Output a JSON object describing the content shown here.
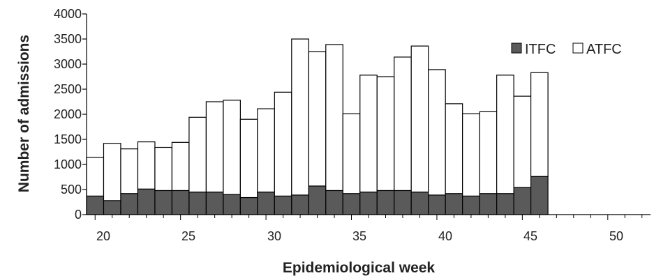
{
  "chart_data": {
    "type": "bar",
    "stacked": true,
    "title": "",
    "xlabel": "Epidemiological week",
    "ylabel": "Number of admissions",
    "xlim": [
      19.5,
      52.5
    ],
    "ylim": [
      0,
      4000
    ],
    "x_ticks": [
      "20",
      "25",
      "30",
      "35",
      "40",
      "45",
      "50"
    ],
    "y_ticks": [
      "0",
      "500",
      "1000",
      "1500",
      "2000",
      "2500",
      "3000",
      "3500",
      "4000"
    ],
    "grid": false,
    "legend_position": "top-right",
    "categories": [
      20,
      21,
      22,
      23,
      24,
      25,
      26,
      27,
      28,
      29,
      30,
      31,
      32,
      33,
      34,
      35,
      36,
      37,
      38,
      39,
      40,
      41,
      42,
      43,
      44,
      45,
      46
    ],
    "series": [
      {
        "name": "ITFC",
        "color": "#5a5a5a",
        "values": [
          370,
          280,
          420,
          510,
          480,
          480,
          450,
          450,
          400,
          340,
          450,
          370,
          390,
          570,
          480,
          420,
          450,
          480,
          480,
          450,
          390,
          420,
          370,
          420,
          420,
          540,
          760
        ]
      },
      {
        "name": "ATFC",
        "color": "#ffffff",
        "values": [
          770,
          1140,
          890,
          940,
          860,
          960,
          1490,
          1800,
          1880,
          1560,
          1660,
          2070,
          3110,
          2680,
          2910,
          1590,
          2330,
          2270,
          2660,
          2910,
          2500,
          1790,
          1640,
          1630,
          2360,
          1820,
          2070
        ]
      }
    ]
  }
}
